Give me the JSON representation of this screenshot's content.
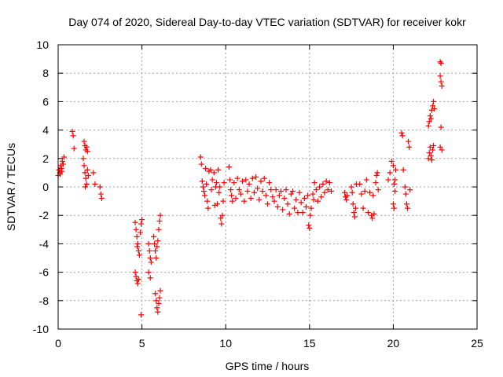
{
  "chart_data": {
    "type": "scatter",
    "title": "Day 074 of 2020, Sidereal Day-to-day VTEC variation (SDTVAR) for receiver kokr",
    "xlabel": "GPS time / hours",
    "ylabel": "SDTVAR / TECUs",
    "xlim": [
      0,
      25
    ],
    "ylim": [
      -10,
      10
    ],
    "xticks": [
      0,
      5,
      10,
      15,
      20,
      25
    ],
    "yticks": [
      -10,
      -8,
      -6,
      -4,
      -2,
      0,
      2,
      4,
      6,
      8,
      10
    ],
    "grid": true,
    "marker": "+",
    "color": "#ff0000",
    "series": [
      {
        "name": "SDTVAR",
        "points": [
          [
            0.0,
            0.8
          ],
          [
            0.05,
            1.2
          ],
          [
            0.1,
            1.0
          ],
          [
            0.15,
            1.5
          ],
          [
            0.2,
            1.3
          ],
          [
            0.25,
            1.8
          ],
          [
            0.3,
            1.6
          ],
          [
            0.35,
            2.1
          ],
          [
            0.12,
            0.9
          ],
          [
            0.22,
            1.1
          ],
          [
            0.85,
            3.9
          ],
          [
            0.9,
            3.6
          ],
          [
            0.95,
            2.7
          ],
          [
            1.55,
            3.2
          ],
          [
            1.6,
            2.9
          ],
          [
            1.65,
            2.6
          ],
          [
            1.7,
            2.8
          ],
          [
            1.75,
            2.5
          ],
          [
            1.5,
            2.0
          ],
          [
            1.55,
            1.5
          ],
          [
            1.6,
            1.0
          ],
          [
            1.65,
            0.6
          ],
          [
            1.7,
            0.2
          ],
          [
            1.75,
            1.2
          ],
          [
            1.8,
            0.8
          ],
          [
            1.62,
            0.0
          ],
          [
            2.1,
            1.0
          ],
          [
            2.2,
            0.2
          ],
          [
            2.5,
            0.0
          ],
          [
            2.55,
            -0.5
          ],
          [
            2.6,
            -0.8
          ],
          [
            4.6,
            -6.0
          ],
          [
            4.65,
            -6.3
          ],
          [
            4.7,
            -6.6
          ],
          [
            4.75,
            -6.8
          ],
          [
            4.8,
            -6.5
          ],
          [
            4.6,
            -2.5
          ],
          [
            4.65,
            -3.0
          ],
          [
            4.7,
            -3.5
          ],
          [
            4.75,
            -4.0
          ],
          [
            4.8,
            -4.5
          ],
          [
            4.85,
            -4.8
          ],
          [
            4.9,
            -3.2
          ],
          [
            4.95,
            -2.6
          ],
          [
            5.0,
            -2.3
          ],
          [
            4.72,
            -4.2
          ],
          [
            4.95,
            -9.0
          ],
          [
            5.4,
            -4.0
          ],
          [
            5.45,
            -4.5
          ],
          [
            5.5,
            -5.0
          ],
          [
            5.55,
            -5.3
          ],
          [
            5.4,
            -6.0
          ],
          [
            5.5,
            -6.4
          ],
          [
            5.7,
            -3.5
          ],
          [
            5.75,
            -4.0
          ],
          [
            5.8,
            -4.5
          ],
          [
            5.85,
            -5.0
          ],
          [
            5.9,
            -4.2
          ],
          [
            5.95,
            -3.8
          ],
          [
            6.0,
            -3.0
          ],
          [
            6.05,
            -2.4
          ],
          [
            6.1,
            -2.0
          ],
          [
            5.8,
            -7.5
          ],
          [
            5.85,
            -8.0
          ],
          [
            5.9,
            -8.5
          ],
          [
            5.95,
            -8.8
          ],
          [
            6.0,
            -8.2
          ],
          [
            6.05,
            -7.8
          ],
          [
            6.1,
            -7.3
          ],
          [
            8.5,
            2.1
          ],
          [
            8.55,
            1.6
          ],
          [
            8.6,
            0.4
          ],
          [
            8.65,
            0.0
          ],
          [
            8.7,
            -0.3
          ],
          [
            8.75,
            -0.6
          ],
          [
            8.8,
            1.3
          ],
          [
            8.85,
            0.2
          ],
          [
            8.9,
            -1.0
          ],
          [
            8.95,
            -1.5
          ],
          [
            9.0,
            1.1
          ],
          [
            9.1,
            1.2
          ],
          [
            9.15,
            -0.2
          ],
          [
            9.2,
            0.5
          ],
          [
            9.3,
            1.0
          ],
          [
            9.35,
            -1.3
          ],
          [
            9.4,
            0.0
          ],
          [
            9.45,
            0.3
          ],
          [
            9.5,
            -1.2
          ],
          [
            9.55,
            1.2
          ],
          [
            9.6,
            -0.4
          ],
          [
            9.65,
            0.0
          ],
          [
            9.7,
            -2.2
          ],
          [
            9.75,
            -2.6
          ],
          [
            9.8,
            -2.0
          ],
          [
            9.85,
            -1.0
          ],
          [
            9.9,
            0.3
          ],
          [
            10.2,
            1.4
          ],
          [
            10.25,
            0.5
          ],
          [
            10.3,
            -0.2
          ],
          [
            10.35,
            -0.6
          ],
          [
            10.4,
            -1.0
          ],
          [
            10.5,
            0.3
          ],
          [
            10.6,
            -0.8
          ],
          [
            10.7,
            0.6
          ],
          [
            10.8,
            -0.2
          ],
          [
            10.9,
            -0.5
          ],
          [
            11.0,
            0.4
          ],
          [
            11.1,
            -1.0
          ],
          [
            11.2,
            0.5
          ],
          [
            11.3,
            -0.3
          ],
          [
            11.4,
            0.2
          ],
          [
            11.5,
            -0.8
          ],
          [
            11.6,
            0.6
          ],
          [
            11.7,
            -0.4
          ],
          [
            11.8,
            0.7
          ],
          [
            11.9,
            -0.1
          ],
          [
            12.0,
            -0.9
          ],
          [
            12.1,
            0.4
          ],
          [
            12.2,
            -0.3
          ],
          [
            12.3,
            0.6
          ],
          [
            12.4,
            -0.6
          ],
          [
            12.5,
            -1.2
          ],
          [
            12.6,
            0.3
          ],
          [
            12.7,
            -0.2
          ],
          [
            12.8,
            -0.7
          ],
          [
            12.9,
            -1.0
          ],
          [
            13.0,
            -0.2
          ],
          [
            13.1,
            -1.4
          ],
          [
            13.2,
            -0.6
          ],
          [
            13.3,
            -0.3
          ],
          [
            13.4,
            -1.6
          ],
          [
            13.5,
            -0.8
          ],
          [
            13.6,
            -0.2
          ],
          [
            13.7,
            -1.2
          ],
          [
            13.8,
            -1.9
          ],
          [
            13.9,
            -0.5
          ],
          [
            14.0,
            -0.3
          ],
          [
            14.1,
            -1.5
          ],
          [
            14.2,
            -0.9
          ],
          [
            14.3,
            -1.8
          ],
          [
            14.4,
            -0.4
          ],
          [
            14.5,
            -1.1
          ],
          [
            14.6,
            -1.8
          ],
          [
            14.7,
            -0.8
          ],
          [
            14.8,
            -1.4
          ],
          [
            14.9,
            -0.6
          ],
          [
            14.95,
            -2.7
          ],
          [
            15.0,
            -2.9
          ],
          [
            15.05,
            -2.0
          ],
          [
            15.1,
            -1.5
          ],
          [
            15.2,
            -0.5
          ],
          [
            15.25,
            -0.9
          ],
          [
            15.3,
            0.3
          ],
          [
            15.4,
            -0.2
          ],
          [
            15.5,
            -1.0
          ],
          [
            15.6,
            0.0
          ],
          [
            15.7,
            -0.7
          ],
          [
            15.8,
            0.2
          ],
          [
            15.9,
            -0.4
          ],
          [
            16.0,
            0.4
          ],
          [
            16.1,
            -0.2
          ],
          [
            16.2,
            0.3
          ],
          [
            16.3,
            -0.3
          ],
          [
            17.1,
            -0.4
          ],
          [
            17.15,
            -0.7
          ],
          [
            17.2,
            -0.9
          ],
          [
            17.25,
            -0.6
          ],
          [
            17.5,
            0.0
          ],
          [
            17.55,
            -0.4
          ],
          [
            17.6,
            -1.2
          ],
          [
            17.65,
            -1.8
          ],
          [
            17.7,
            -2.1
          ],
          [
            17.75,
            -1.5
          ],
          [
            17.8,
            0.2
          ],
          [
            18.0,
            0.2
          ],
          [
            18.1,
            -0.5
          ],
          [
            18.2,
            -1.5
          ],
          [
            18.3,
            -0.3
          ],
          [
            18.4,
            0.5
          ],
          [
            18.5,
            -1.8
          ],
          [
            18.6,
            -0.4
          ],
          [
            18.7,
            -2.0
          ],
          [
            18.75,
            -2.2
          ],
          [
            18.8,
            -0.6
          ],
          [
            18.85,
            -1.9
          ],
          [
            18.95,
            0.3
          ],
          [
            19.0,
            0.8
          ],
          [
            19.05,
            1.0
          ],
          [
            19.1,
            -0.2
          ],
          [
            19.7,
            0.5
          ],
          [
            19.8,
            1.0
          ],
          [
            19.9,
            1.8
          ],
          [
            20.0,
            1.5
          ],
          [
            20.05,
            0.2
          ],
          [
            20.1,
            -0.3
          ],
          [
            20.0,
            -1.2
          ],
          [
            20.05,
            -1.5
          ],
          [
            20.1,
            0.5
          ],
          [
            20.15,
            1.2
          ],
          [
            20.5,
            3.8
          ],
          [
            20.55,
            3.6
          ],
          [
            20.6,
            1.2
          ],
          [
            20.7,
            0.0
          ],
          [
            20.75,
            -0.5
          ],
          [
            20.8,
            -1.2
          ],
          [
            20.85,
            -1.5
          ],
          [
            20.9,
            3.2
          ],
          [
            20.95,
            2.8
          ],
          [
            21.0,
            -0.2
          ],
          [
            22.1,
            4.3
          ],
          [
            22.15,
            4.6
          ],
          [
            22.2,
            5.0
          ],
          [
            22.25,
            4.8
          ],
          [
            22.3,
            5.4
          ],
          [
            22.35,
            5.7
          ],
          [
            22.4,
            6.0
          ],
          [
            22.45,
            5.5
          ],
          [
            22.1,
            2.0
          ],
          [
            22.15,
            2.4
          ],
          [
            22.2,
            2.8
          ],
          [
            22.25,
            2.2
          ],
          [
            22.3,
            1.9
          ],
          [
            22.35,
            2.6
          ],
          [
            22.4,
            2.9
          ],
          [
            22.8,
            8.8
          ],
          [
            22.85,
            8.7
          ],
          [
            22.8,
            7.8
          ],
          [
            22.85,
            7.4
          ],
          [
            22.9,
            7.1
          ],
          [
            22.85,
            4.2
          ],
          [
            22.8,
            2.8
          ],
          [
            22.9,
            2.6
          ]
        ]
      }
    ]
  }
}
